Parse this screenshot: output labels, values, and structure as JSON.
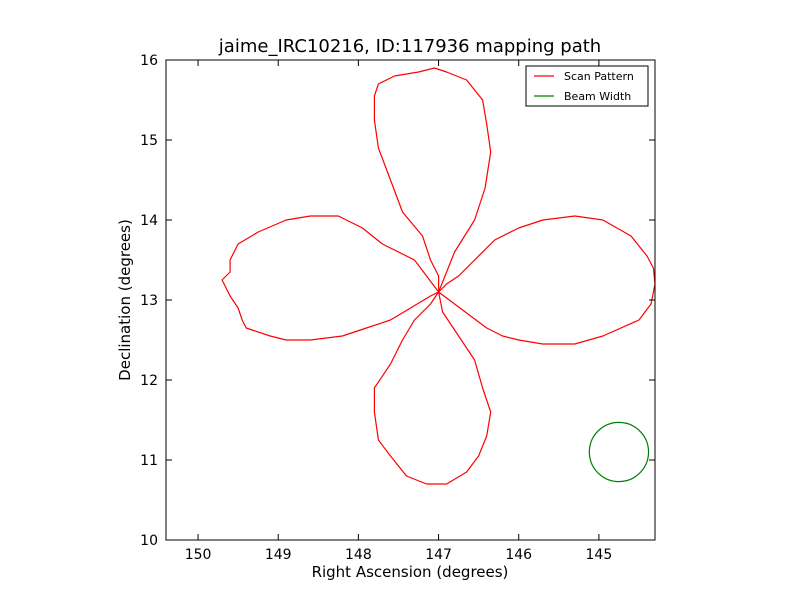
{
  "chart_data": {
    "type": "line",
    "title": "jaime_IRC10216, ID:117936 mapping path",
    "xlabel": "Right Ascension (degrees)",
    "ylabel": "Declination (degrees)",
    "xlim": [
      150.4,
      144.3
    ],
    "ylim": [
      10,
      16
    ],
    "x_reversed": true,
    "xticks": [
      "150",
      "149",
      "148",
      "147",
      "146",
      "145"
    ],
    "yticks": [
      "10",
      "11",
      "12",
      "13",
      "14",
      "15",
      "16"
    ],
    "legend_position": "upper right",
    "grid": false,
    "series": [
      {
        "name": "Scan Pattern",
        "color": "#ff0000",
        "kind": "line",
        "x": [
          147.0,
          147.3,
          147.7,
          147.95,
          148.25,
          148.6,
          148.9,
          149.25,
          149.5,
          149.6,
          149.6,
          149.7,
          149.6,
          149.5,
          149.45,
          149.4,
          149.1,
          148.9,
          148.6,
          148.2,
          147.9,
          147.6,
          147.35,
          147.1,
          147.0,
          146.8,
          146.6,
          146.4,
          146.2,
          146.0,
          145.7,
          145.3,
          144.95,
          144.5,
          144.35,
          144.3,
          144.32,
          144.4,
          144.6,
          144.95,
          145.3,
          145.7,
          146.0,
          146.3,
          146.55,
          146.75,
          146.9,
          147.0,
          147.1,
          147.3,
          147.45,
          147.6,
          147.8,
          147.8,
          147.75,
          147.6,
          147.4,
          147.15,
          146.9,
          146.65,
          146.5,
          146.4,
          146.35,
          146.45,
          146.55,
          146.75,
          146.95,
          147.0,
          147.0,
          147.1,
          147.2,
          147.45,
          147.6,
          147.75,
          147.8,
          147.8,
          147.75,
          147.55,
          147.25,
          147.05,
          146.9,
          146.65,
          146.45,
          146.4,
          146.35,
          146.42,
          146.55,
          146.8,
          147.0
        ],
        "y": [
          13.1,
          13.5,
          13.7,
          13.9,
          14.05,
          14.05,
          14.0,
          13.85,
          13.7,
          13.5,
          13.35,
          13.25,
          13.05,
          12.9,
          12.75,
          12.65,
          12.55,
          12.5,
          12.5,
          12.55,
          12.65,
          12.75,
          12.9,
          13.05,
          13.1,
          12.95,
          12.8,
          12.65,
          12.55,
          12.5,
          12.45,
          12.45,
          12.55,
          12.75,
          12.95,
          13.2,
          13.4,
          13.55,
          13.8,
          14.0,
          14.05,
          14.0,
          13.9,
          13.75,
          13.5,
          13.3,
          13.2,
          13.1,
          12.95,
          12.75,
          12.5,
          12.2,
          11.9,
          11.6,
          11.25,
          11.05,
          10.8,
          10.7,
          10.7,
          10.85,
          11.05,
          11.3,
          11.6,
          11.9,
          12.25,
          12.55,
          12.85,
          13.1,
          13.3,
          13.5,
          13.8,
          14.1,
          14.5,
          14.9,
          15.25,
          15.55,
          15.7,
          15.8,
          15.85,
          15.9,
          15.85,
          15.75,
          15.5,
          15.2,
          14.85,
          14.4,
          14.0,
          13.6,
          13.1
        ]
      },
      {
        "name": "Beam Width",
        "color": "#008000",
        "kind": "circle",
        "center": [
          144.75,
          11.1
        ],
        "radius_y": 0.37
      }
    ]
  }
}
